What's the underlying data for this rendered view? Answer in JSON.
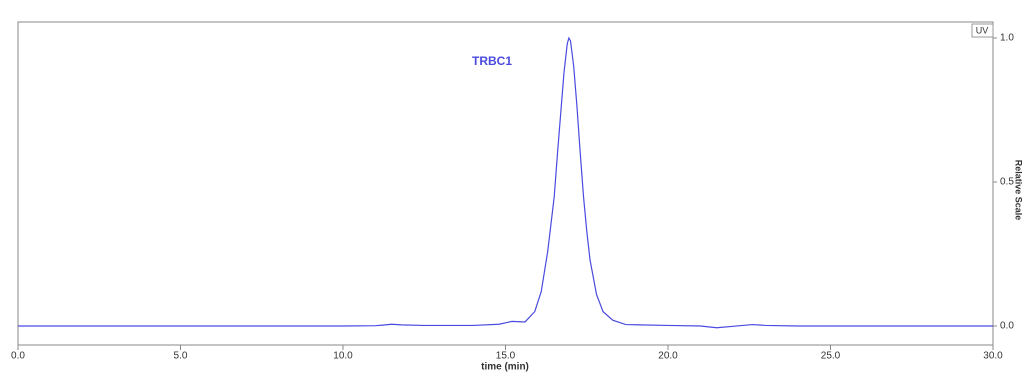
{
  "chart_data": {
    "type": "line",
    "annotation": "TRBC1",
    "legend": "UV",
    "xlabel": "time (min)",
    "ylabel": "Relative Scale",
    "xlim": [
      0,
      30
    ],
    "ylim": [
      0,
      1
    ],
    "xticks": [
      {
        "value": 0,
        "label": "0.0"
      },
      {
        "value": 5,
        "label": "5.0"
      },
      {
        "value": 10,
        "label": "10.0"
      },
      {
        "value": 15,
        "label": "15.0"
      },
      {
        "value": 20,
        "label": "20.0"
      },
      {
        "value": 25,
        "label": "25.0"
      },
      {
        "value": 30,
        "label": "30.0"
      }
    ],
    "yticks": [
      {
        "value": 0,
        "label": "0.0"
      },
      {
        "value": 0.5,
        "label": "0.5"
      },
      {
        "value": 1,
        "label": "1.0"
      }
    ],
    "series": [
      {
        "name": "UV",
        "color": "#4a4ae0",
        "x": [
          0,
          5,
          10,
          11,
          11.3,
          11.5,
          11.8,
          12.5,
          14,
          14.8,
          15.2,
          15.6,
          15.9,
          16.1,
          16.3,
          16.5,
          16.6,
          16.7,
          16.8,
          16.9,
          16.95,
          17.0,
          17.1,
          17.2,
          17.3,
          17.4,
          17.5,
          17.6,
          17.8,
          18.0,
          18.3,
          18.7,
          20,
          21,
          21.5,
          22,
          22.6,
          23,
          24,
          30
        ],
        "values": [
          0,
          0,
          0,
          0.001,
          0.004,
          0.006,
          0.004,
          0.002,
          0.002,
          0.006,
          0.016,
          0.014,
          0.05,
          0.12,
          0.26,
          0.45,
          0.6,
          0.74,
          0.88,
          0.98,
          1.0,
          0.99,
          0.9,
          0.76,
          0.6,
          0.45,
          0.33,
          0.23,
          0.11,
          0.05,
          0.02,
          0.005,
          0.002,
          0,
          -0.006,
          -0.001,
          0.005,
          0.002,
          0,
          0
        ]
      }
    ]
  }
}
